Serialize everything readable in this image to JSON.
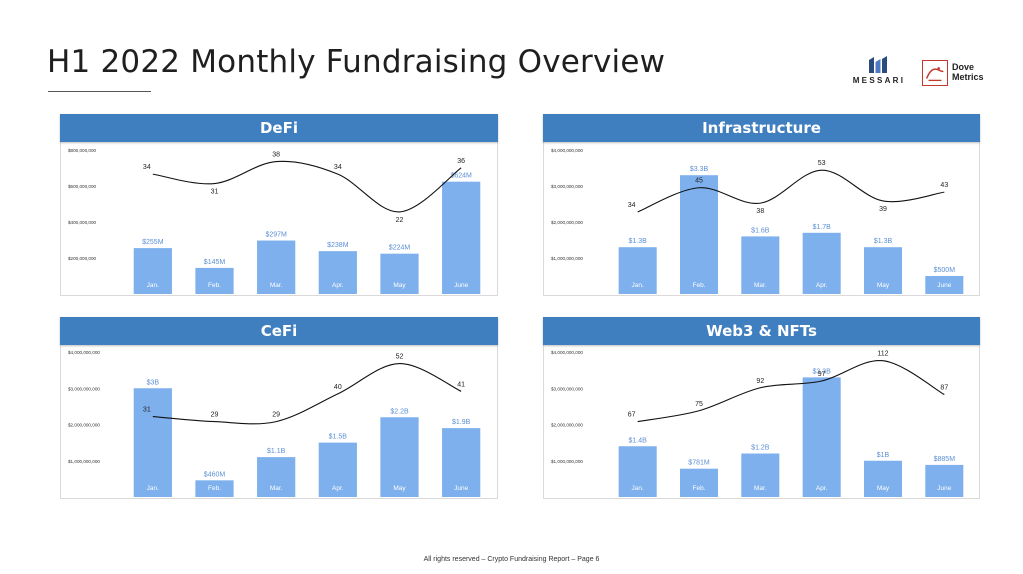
{
  "page": {
    "title": "H1 2022 Monthly Fundraising Overview",
    "footer": "All rights reserved – Crypto Fundraising Report – Page 6"
  },
  "logos": {
    "messari": "MESSARI",
    "dove_line1": "Dove",
    "dove_line2": "Metrics"
  },
  "colors": {
    "header": "#3f7fbf",
    "bar": "#7db0ec",
    "bar_label": "#5b8fd6",
    "line": "#111111",
    "dove_red": "#c0392b"
  },
  "chart_data": [
    {
      "type": "bar",
      "title": "DeFi",
      "categories": [
        "Jan.",
        "Feb.",
        "Mar.",
        "Apr.",
        "May",
        "June"
      ],
      "ylim": [
        0,
        800000000
      ],
      "yticks": [
        200000000,
        400000000,
        600000000,
        800000000
      ],
      "ytick_labels": [
        "$200,000,000",
        "$400,000,000",
        "$600,000,000",
        "$800,000,000"
      ],
      "series": [
        {
          "kind": "bar",
          "values": [
            255000000,
            145000000,
            297000000,
            238000000,
            224000000,
            624000000
          ],
          "labels": [
            "$255M",
            "$145M",
            "$297M",
            "$238M",
            "$224M",
            "$624M"
          ]
        },
        {
          "kind": "line",
          "values": [
            34,
            31,
            38,
            34,
            22,
            36
          ],
          "labels": [
            "34",
            "31",
            "38",
            "34",
            "22",
            "36"
          ]
        }
      ]
    },
    {
      "type": "bar",
      "title": "Infrastructure",
      "categories": [
        "Jan.",
        "Feb.",
        "Mar.",
        "Apr.",
        "May",
        "June"
      ],
      "ylim": [
        0,
        4000000000
      ],
      "yticks": [
        1000000000,
        2000000000,
        3000000000,
        4000000000
      ],
      "ytick_labels": [
        "$1,000,000,000",
        "$2,000,000,000",
        "$3,000,000,000",
        "$4,000,000,000"
      ],
      "series": [
        {
          "kind": "bar",
          "values": [
            1300000000,
            3300000000,
            1600000000,
            1700000000,
            1300000000,
            500000000
          ],
          "labels": [
            "$1.3B",
            "$3.3B",
            "$1.6B",
            "$1.7B",
            "$1.3B",
            "$500M"
          ]
        },
        {
          "kind": "line",
          "values": [
            34,
            45,
            38,
            53,
            39,
            43
          ],
          "labels": [
            "34",
            "45",
            "38",
            "53",
            "39",
            "43"
          ]
        }
      ]
    },
    {
      "type": "bar",
      "title": "CeFi",
      "categories": [
        "Jan.",
        "Feb.",
        "Mar.",
        "Apr.",
        "May",
        "June"
      ],
      "ylim": [
        0,
        4000000000
      ],
      "yticks": [
        1000000000,
        2000000000,
        3000000000,
        4000000000
      ],
      "ytick_labels": [
        "$1,000,000,000",
        "$2,000,000,000",
        "$3,000,000,000",
        "$4,000,000,000"
      ],
      "series": [
        {
          "kind": "bar",
          "values": [
            3000000000,
            460000000,
            1100000000,
            1500000000,
            2200000000,
            1900000000
          ],
          "labels": [
            "$3B",
            "$460M",
            "$1.1B",
            "$1.5B",
            "$2.2B",
            "$1.9B"
          ]
        },
        {
          "kind": "line",
          "values": [
            31,
            29,
            29,
            40,
            52,
            41
          ],
          "labels": [
            "31",
            "29",
            "29",
            "40",
            "52",
            "41"
          ]
        }
      ]
    },
    {
      "type": "bar",
      "title": "Web3 & NFTs",
      "categories": [
        "Jan.",
        "Feb.",
        "Mar.",
        "Apr.",
        "May",
        "June"
      ],
      "ylim": [
        0,
        4000000000
      ],
      "yticks": [
        1000000000,
        2000000000,
        3000000000,
        4000000000
      ],
      "ytick_labels": [
        "$1,000,000,000",
        "$2,000,000,000",
        "$3,000,000,000",
        "$4,000,000,000"
      ],
      "series": [
        {
          "kind": "bar",
          "values": [
            1400000000,
            781000000,
            1200000000,
            3300000000,
            1000000000,
            885000000
          ],
          "labels": [
            "$1.4B",
            "$781M",
            "$1.2B",
            "$3.3B",
            "$1B",
            "$885M"
          ]
        },
        {
          "kind": "line",
          "values": [
            67,
            75,
            92,
            97,
            112,
            87
          ],
          "labels": [
            "67",
            "75",
            "92",
            "97",
            "112",
            "87"
          ]
        }
      ]
    }
  ]
}
